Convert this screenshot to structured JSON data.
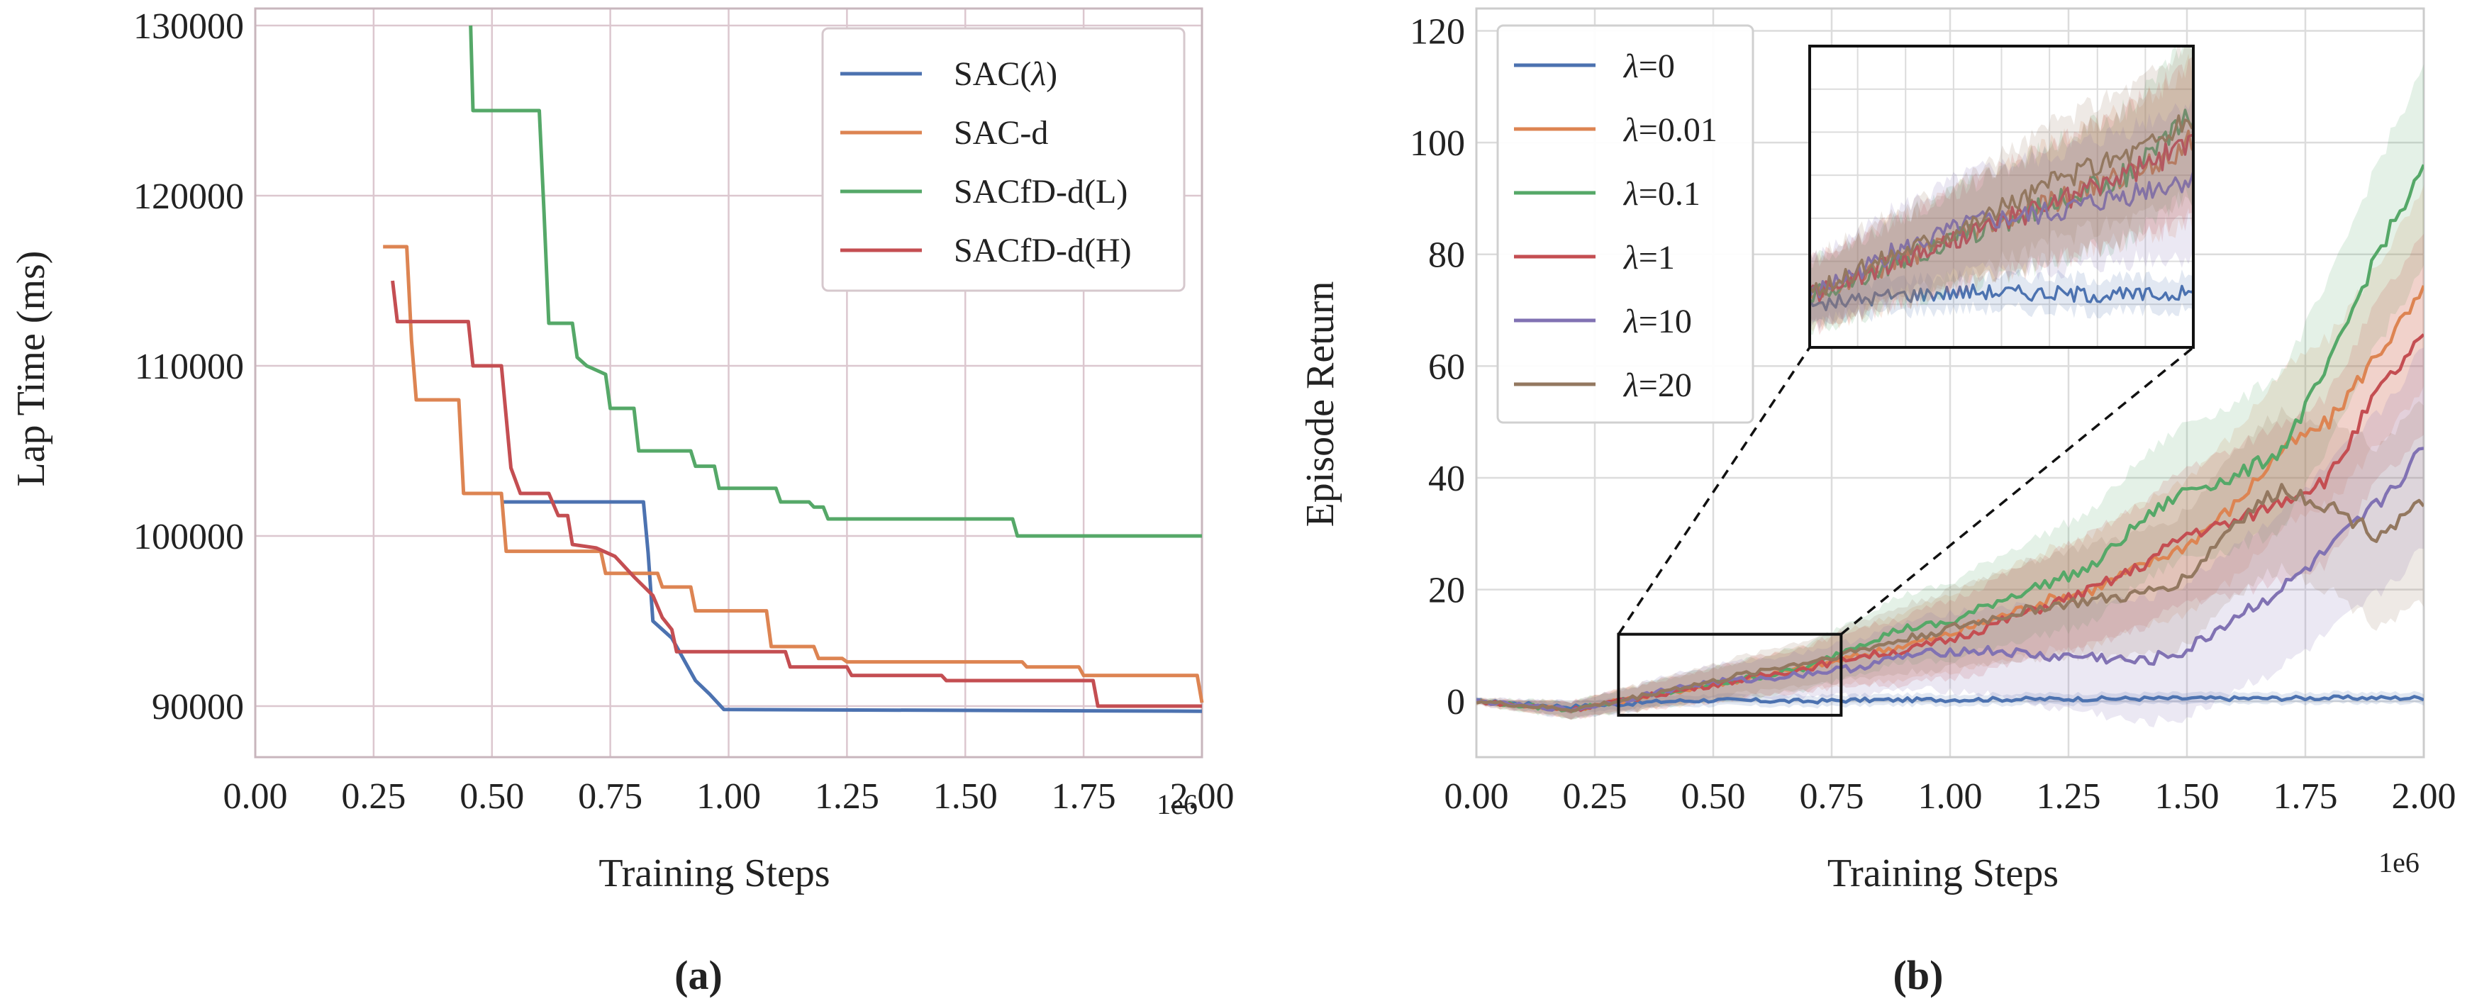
{
  "panel_labels": [
    "(a)",
    "(b)"
  ],
  "chart_data": [
    {
      "type": "line",
      "xlabel": "Training Steps",
      "ylabel": "Lap Time (ms)",
      "x_offset_text": "1e6",
      "xlim": [
        0.0,
        2.0
      ],
      "ylim": [
        87000,
        131000
      ],
      "xticks": [
        0.0,
        0.25,
        0.5,
        0.75,
        1.0,
        1.25,
        1.5,
        1.75,
        2.0
      ],
      "xtick_labels": [
        "0.00",
        "0.25",
        "0.50",
        "0.75",
        "1.00",
        "1.25",
        "1.50",
        "1.75",
        "2.00"
      ],
      "yticks": [
        90000,
        100000,
        110000,
        120000,
        130000
      ],
      "ytick_labels": [
        "90000",
        "100000",
        "110000",
        "120000",
        "130000"
      ],
      "grid": true,
      "legend_position": "upper right",
      "step": true,
      "series": [
        {
          "name": "SAC(λ)",
          "color": "#4c72b0",
          "points": [
            [
              0.52,
              102000
            ],
            [
              0.82,
              102000
            ],
            [
              0.83,
              99000
            ],
            [
              0.84,
              95000
            ],
            [
              0.88,
              94000
            ],
            [
              0.93,
              91500
            ],
            [
              0.96,
              90700
            ],
            [
              0.99,
              89800
            ],
            [
              2.0,
              89700
            ]
          ]
        },
        {
          "name": "SAC-d",
          "color": "#dd8452",
          "points": [
            [
              0.27,
              117000
            ],
            [
              0.32,
              117000
            ],
            [
              0.33,
              111500
            ],
            [
              0.34,
              108000
            ],
            [
              0.43,
              108000
            ],
            [
              0.44,
              102500
            ],
            [
              0.52,
              102500
            ],
            [
              0.53,
              99100
            ],
            [
              0.73,
              99100
            ],
            [
              0.74,
              97800
            ],
            [
              0.85,
              97800
            ],
            [
              0.86,
              97000
            ],
            [
              0.92,
              97000
            ],
            [
              0.93,
              95600
            ],
            [
              1.08,
              95600
            ],
            [
              1.09,
              93500
            ],
            [
              1.18,
              93500
            ],
            [
              1.19,
              92800
            ],
            [
              1.24,
              92800
            ],
            [
              1.25,
              92600
            ],
            [
              1.62,
              92600
            ],
            [
              1.63,
              92300
            ],
            [
              1.74,
              92300
            ],
            [
              1.75,
              91800
            ],
            [
              1.99,
              91800
            ],
            [
              2.0,
              90200
            ]
          ]
        },
        {
          "name": "SACfD-d(L)",
          "color": "#55a868",
          "points": [
            [
              0.455,
              130000
            ],
            [
              0.46,
              125000
            ],
            [
              0.6,
              125000
            ],
            [
              0.61,
              119000
            ],
            [
              0.62,
              112500
            ],
            [
              0.67,
              112500
            ],
            [
              0.68,
              110500
            ],
            [
              0.7,
              110000
            ],
            [
              0.74,
              109500
            ],
            [
              0.75,
              107500
            ],
            [
              0.8,
              107500
            ],
            [
              0.81,
              105000
            ],
            [
              0.92,
              105000
            ],
            [
              0.93,
              104100
            ],
            [
              0.97,
              104100
            ],
            [
              0.98,
              102800
            ],
            [
              1.1,
              102800
            ],
            [
              1.11,
              102000
            ],
            [
              1.17,
              102000
            ],
            [
              1.18,
              101700
            ],
            [
              1.2,
              101700
            ],
            [
              1.21,
              101000
            ],
            [
              1.6,
              101000
            ],
            [
              1.61,
              100000
            ],
            [
              2.0,
              100000
            ]
          ]
        },
        {
          "name": "SACfD-d(H)",
          "color": "#c44e52",
          "points": [
            [
              0.29,
              115000
            ],
            [
              0.3,
              112600
            ],
            [
              0.45,
              112600
            ],
            [
              0.46,
              110000
            ],
            [
              0.52,
              110000
            ],
            [
              0.53,
              107000
            ],
            [
              0.54,
              104000
            ],
            [
              0.56,
              102500
            ],
            [
              0.62,
              102500
            ],
            [
              0.64,
              101200
            ],
            [
              0.66,
              101200
            ],
            [
              0.67,
              99500
            ],
            [
              0.72,
              99300
            ],
            [
              0.76,
              98800
            ],
            [
              0.8,
              97600
            ],
            [
              0.84,
              96500
            ],
            [
              0.86,
              95200
            ],
            [
              0.88,
              94500
            ],
            [
              0.89,
              93200
            ],
            [
              1.12,
              93200
            ],
            [
              1.13,
              92300
            ],
            [
              1.25,
              92300
            ],
            [
              1.26,
              91800
            ],
            [
              1.45,
              91800
            ],
            [
              1.46,
              91500
            ],
            [
              1.77,
              91500
            ],
            [
              1.78,
              90000
            ],
            [
              2.0,
              90000
            ]
          ]
        }
      ]
    },
    {
      "type": "line",
      "xlabel": "Training Steps",
      "ylabel": "Episode Return",
      "x_offset_text": "1e6",
      "xlim": [
        0.0,
        2.0
      ],
      "ylim": [
        -10,
        124
      ],
      "xticks": [
        0.0,
        0.25,
        0.5,
        0.75,
        1.0,
        1.25,
        1.5,
        1.75,
        2.0
      ],
      "xtick_labels": [
        "0.00",
        "0.25",
        "0.50",
        "0.75",
        "1.00",
        "1.25",
        "1.50",
        "1.75",
        "2.00"
      ],
      "yticks": [
        0,
        20,
        40,
        60,
        80,
        100,
        120
      ],
      "ytick_labels": [
        "0",
        "20",
        "40",
        "60",
        "80",
        "100",
        "120"
      ],
      "grid": true,
      "legend_position": "upper left",
      "inset": {
        "x_range": [
          0.3,
          0.77
        ],
        "y_range": [
          -2.5,
          12
        ]
      },
      "series": [
        {
          "name": "λ=0",
          "color": "#4c72b0",
          "x": [
            0.0,
            0.1,
            0.2,
            0.3,
            0.4,
            0.5,
            0.6,
            0.7,
            0.8,
            1.0,
            1.2,
            1.4,
            1.6,
            1.8,
            2.0
          ],
          "y": [
            0,
            -0.5,
            -1,
            -0.5,
            0,
            0.2,
            0.1,
            0.0,
            0.2,
            0.3,
            0.4,
            0.5,
            0.5,
            0.6,
            0.6
          ],
          "band": [
            0.5,
            0.5,
            1,
            1,
            1,
            1,
            1,
            1,
            1,
            1,
            1,
            1,
            1,
            1,
            1
          ]
        },
        {
          "name": "λ=0.01",
          "color": "#dd8452",
          "x": [
            0.0,
            0.1,
            0.2,
            0.3,
            0.4,
            0.5,
            0.6,
            0.7,
            0.8,
            0.9,
            1.0,
            1.1,
            1.2,
            1.3,
            1.4,
            1.5,
            1.6,
            1.7,
            1.8,
            1.9,
            2.0
          ],
          "y": [
            0,
            -0.8,
            -1.5,
            0,
            1.5,
            3,
            4.5,
            6,
            8,
            10,
            12,
            15,
            18,
            20,
            24,
            28,
            35,
            45,
            50,
            62,
            73
          ],
          "band": [
            0.5,
            1,
            1.5,
            2,
            2.5,
            3,
            3.5,
            4,
            5,
            6,
            7,
            8,
            9,
            10,
            11,
            12,
            13,
            14,
            15,
            16,
            18
          ]
        },
        {
          "name": "λ=0.1",
          "color": "#55a868",
          "x": [
            0.0,
            0.1,
            0.2,
            0.3,
            0.4,
            0.5,
            0.6,
            0.7,
            0.8,
            0.9,
            1.0,
            1.1,
            1.2,
            1.3,
            1.4,
            1.5,
            1.6,
            1.7,
            1.8,
            1.9,
            2.0
          ],
          "y": [
            0,
            -0.8,
            -1.5,
            0,
            1.5,
            3,
            4.5,
            6,
            10,
            13,
            14,
            18,
            21,
            24,
            32,
            38,
            40,
            45,
            60,
            80,
            95
          ],
          "band": [
            0.5,
            1,
            1.5,
            2,
            2.5,
            3,
            3.5,
            4,
            5,
            6,
            7,
            8,
            9,
            10,
            11,
            12,
            13,
            14,
            15,
            16,
            18
          ]
        },
        {
          "name": "λ=1",
          "color": "#c44e52",
          "x": [
            0.0,
            0.1,
            0.2,
            0.3,
            0.4,
            0.5,
            0.6,
            0.7,
            0.8,
            0.9,
            1.0,
            1.1,
            1.2,
            1.3,
            1.4,
            1.5,
            1.6,
            1.7,
            1.8,
            1.9,
            2.0
          ],
          "y": [
            0,
            -0.8,
            -1.5,
            0,
            1.5,
            3,
            4.5,
            6,
            8,
            9,
            11,
            14,
            17,
            20,
            24,
            30,
            32,
            36,
            40,
            55,
            65
          ],
          "band": [
            0.5,
            1,
            1.5,
            2,
            2.5,
            3,
            3.5,
            4,
            5,
            6,
            7,
            8,
            9,
            10,
            11,
            12,
            13,
            14,
            15,
            16,
            18
          ]
        },
        {
          "name": "λ=10",
          "color": "#8172b3",
          "x": [
            0.0,
            0.1,
            0.2,
            0.3,
            0.4,
            0.5,
            0.6,
            0.7,
            0.8,
            0.9,
            1.0,
            1.1,
            1.2,
            1.3,
            1.4,
            1.5,
            1.6,
            1.7,
            1.8,
            1.9,
            2.0
          ],
          "y": [
            0,
            -0.8,
            -1.5,
            0,
            2,
            3.5,
            4,
            5,
            6,
            8,
            9,
            9,
            8,
            8,
            7,
            9,
            15,
            20,
            27,
            35,
            45
          ],
          "band": [
            0.5,
            1,
            1.5,
            2,
            2.5,
            3,
            3.5,
            4,
            5,
            6,
            7,
            8,
            9,
            10,
            11,
            12,
            13,
            14,
            15,
            16,
            18
          ]
        },
        {
          "name": "λ=20",
          "color": "#937860",
          "x": [
            0.0,
            0.1,
            0.2,
            0.3,
            0.4,
            0.5,
            0.6,
            0.7,
            0.8,
            0.9,
            1.0,
            1.1,
            1.2,
            1.3,
            1.4,
            1.5,
            1.6,
            1.7,
            1.8,
            1.9,
            2.0
          ],
          "y": [
            0,
            -0.8,
            -1.5,
            0,
            2,
            3.5,
            5.5,
            7,
            9,
            11,
            13,
            15,
            17,
            18,
            19,
            22,
            32,
            38,
            35,
            30,
            35
          ],
          "band": [
            0.5,
            1,
            1.5,
            2,
            2.5,
            3,
            3.5,
            4,
            5,
            6,
            7,
            8,
            9,
            10,
            11,
            12,
            13,
            14,
            15,
            16,
            18
          ]
        }
      ]
    }
  ]
}
